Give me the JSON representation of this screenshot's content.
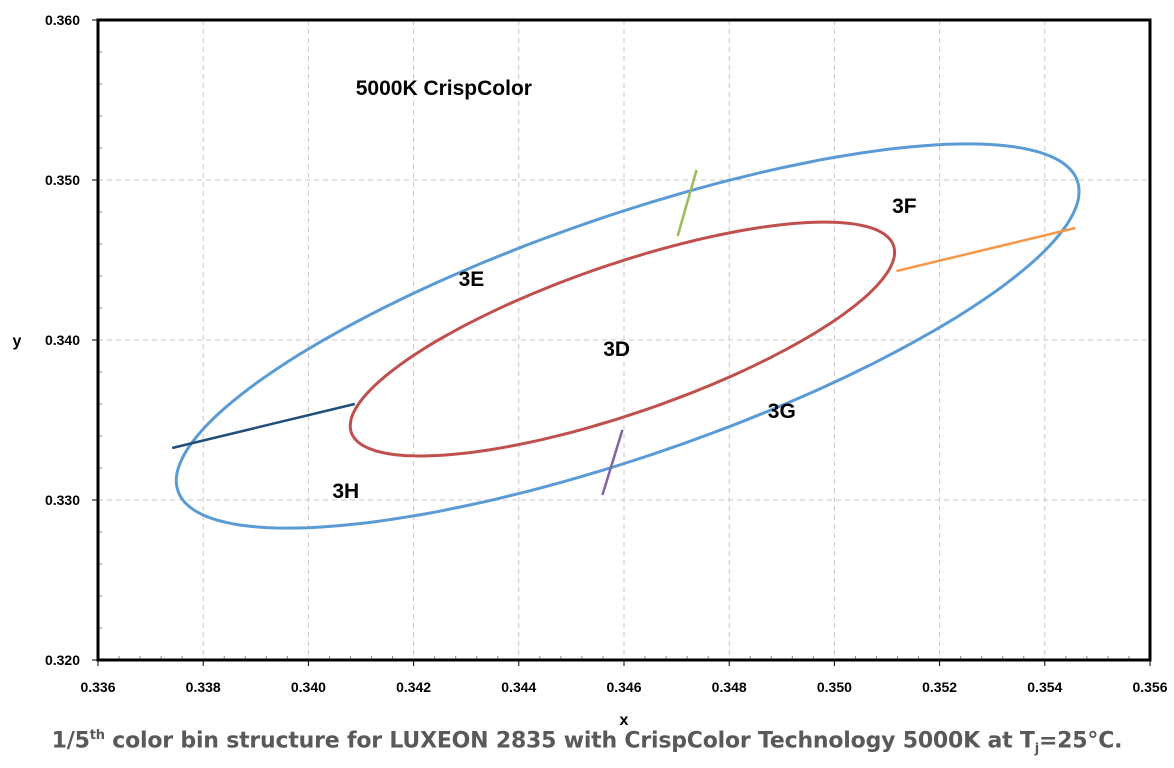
{
  "chart_data": {
    "type": "line",
    "title": "5000K CrispColor",
    "xlabel": "x",
    "ylabel": "y",
    "xlim": [
      0.336,
      0.356
    ],
    "ylim": [
      0.32,
      0.36
    ],
    "grid": true,
    "x_ticks": [
      "0.336",
      "0.338",
      "0.340",
      "0.342",
      "0.344",
      "0.346",
      "0.348",
      "0.350",
      "0.352",
      "0.354",
      "0.356"
    ],
    "y_ticks": [
      "0.320",
      "0.330",
      "0.340",
      "0.350",
      "0.360"
    ],
    "ellipses": [
      {
        "name": "outer bin boundary",
        "color": "#5b9bd5",
        "center": [
          0.34607,
          0.34025
        ],
        "axis_u": [
          0.00855,
          0.00969
        ],
        "axis_v": [
          0.000742,
          -0.00709
        ]
      },
      {
        "name": "3D boundary",
        "color": "#c0504d",
        "center": [
          0.34597,
          0.34006
        ],
        "axis_u": [
          0.005154,
          0.00584
        ],
        "axis_v": [
          0.00046,
          -0.004396
        ]
      }
    ],
    "segments": [
      {
        "name": "3H/3E divider",
        "color": "#1f4e79",
        "points": [
          [
            0.33741,
            0.33325
          ],
          [
            0.34088,
            0.336
          ]
        ]
      },
      {
        "name": "3E/3F divider",
        "color": "#9bbb59",
        "points": [
          [
            0.34702,
            0.3465
          ],
          [
            0.34738,
            0.35063
          ]
        ]
      },
      {
        "name": "3F/3G divider",
        "color": "#f79646",
        "points": [
          [
            0.35118,
            0.34431
          ],
          [
            0.35458,
            0.347
          ]
        ]
      },
      {
        "name": "3G/3H divider",
        "color": "#8064a2",
        "points": [
          [
            0.34559,
            0.33031
          ],
          [
            0.34597,
            0.33438
          ]
        ]
      }
    ],
    "region_labels": [
      {
        "text": "3F",
        "x": 0.35133,
        "y": 0.34844
      },
      {
        "text": "3E",
        "x": 0.3431,
        "y": 0.34388
      },
      {
        "text": "3D",
        "x": 0.34586,
        "y": 0.3395
      },
      {
        "text": "3G",
        "x": 0.349,
        "y": 0.33563
      },
      {
        "text": "3H",
        "x": 0.34071,
        "y": 0.33063
      }
    ],
    "title_position": {
      "x": 0.3409,
      "y": 0.3558
    }
  },
  "caption": {
    "part1": "1/5",
    "sup": "th",
    "part2": " color bin structure for LUXEON 2835 with CrispColor Technology 5000K at T",
    "sub": "j",
    "part3": "=25°C."
  }
}
